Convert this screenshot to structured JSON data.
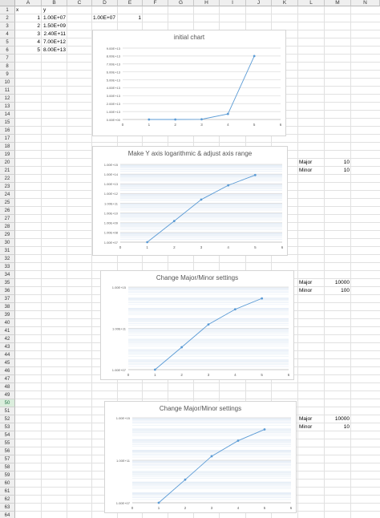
{
  "columns": [
    "A",
    "B",
    "C",
    "D",
    "E",
    "F",
    "G",
    "H",
    "I",
    "J",
    "K",
    "L",
    "M",
    "N"
  ],
  "rows": 64,
  "selected_row": 50,
  "cells": {
    "A1": "x",
    "B1": "y",
    "A2": "1",
    "B2": "1.00E+07",
    "A3": "2",
    "B3": "1.50E+09",
    "A4": "3",
    "B4": "2.40E+11",
    "A5": "4",
    "B5": "7.00E+12",
    "A6": "5",
    "B6": "8.00E+13",
    "D2": "1.00E+07",
    "E2": "1",
    "L20": "Major",
    "M20": "10",
    "L21": "Minor",
    "M21": "10",
    "L35": "Major",
    "M35": "10000",
    "L36": "Minor",
    "M36": "100",
    "L52": "Major",
    "M52": "10000",
    "L53": "Minor",
    "M53": "10"
  },
  "chart_data": [
    {
      "type": "line",
      "title": "initial chart",
      "x": [
        1,
        2,
        3,
        4,
        5
      ],
      "y": [
        10000000.0,
        1500000000.0,
        240000000000.0,
        7000000000000.0,
        80000000000000.0
      ],
      "xlim": [
        0,
        6
      ],
      "ylim": [
        0,
        90000000000000.0
      ],
      "y_scale": "linear",
      "x_ticks": [
        "0",
        "1",
        "2",
        "3",
        "4",
        "5",
        "6"
      ],
      "y_ticks": [
        "0.00E+00",
        "1.00E+13",
        "2.00E+13",
        "3.00E+13",
        "4.00E+13",
        "5.00E+13",
        "6.00E+13",
        "7.00E+13",
        "8.00E+13",
        "9.00E+13"
      ],
      "grid": true,
      "color": "#5b9bd5"
    },
    {
      "type": "line",
      "title": "Make Y axis logarithmic & adjust axis range",
      "x": [
        1,
        2,
        3,
        4,
        5
      ],
      "y": [
        10000000.0,
        1500000000.0,
        240000000000.0,
        7000000000000.0,
        80000000000000.0
      ],
      "xlim": [
        0,
        6
      ],
      "ylim": [
        10000000.0,
        1000000000000000.0
      ],
      "y_scale": "log",
      "x_ticks": [
        "0",
        "1",
        "2",
        "3",
        "4",
        "5",
        "6"
      ],
      "y_ticks": [
        "1.00E+07",
        "1.00E+08",
        "1.00E+09",
        "1.00E+10",
        "1.00E+11",
        "1.00E+12",
        "1.00E+13",
        "1.00E+14",
        "1.00E+15"
      ],
      "grid": true,
      "color": "#5b9bd5"
    },
    {
      "type": "line",
      "title": "Change Major/Minor settings",
      "x": [
        1,
        2,
        3,
        4,
        5
      ],
      "y": [
        10000000.0,
        1500000000.0,
        240000000000.0,
        7000000000000.0,
        80000000000000.0
      ],
      "xlim": [
        0,
        6
      ],
      "ylim": [
        10000000.0,
        1000000000000000.0
      ],
      "y_scale": "log",
      "x_ticks": [
        "0",
        "1",
        "2",
        "3",
        "4",
        "5",
        "6"
      ],
      "y_ticks": [
        "1.00E+07",
        "1.00E+11",
        "1.00E+15"
      ],
      "grid": true,
      "color": "#5b9bd5"
    },
    {
      "type": "line",
      "title": "Change Major/Minor settings",
      "x": [
        1,
        2,
        3,
        4,
        5
      ],
      "y": [
        10000000.0,
        1500000000.0,
        240000000000.0,
        7000000000000.0,
        80000000000000.0
      ],
      "xlim": [
        0,
        6
      ],
      "ylim": [
        10000000.0,
        1000000000000000.0
      ],
      "y_scale": "log",
      "x_ticks": [
        "0",
        "1",
        "2",
        "3",
        "4",
        "5",
        "6"
      ],
      "y_ticks": [
        "1.00E+07",
        "1.00E+11",
        "1.00E+15"
      ],
      "grid": true,
      "color": "#5b9bd5"
    }
  ]
}
